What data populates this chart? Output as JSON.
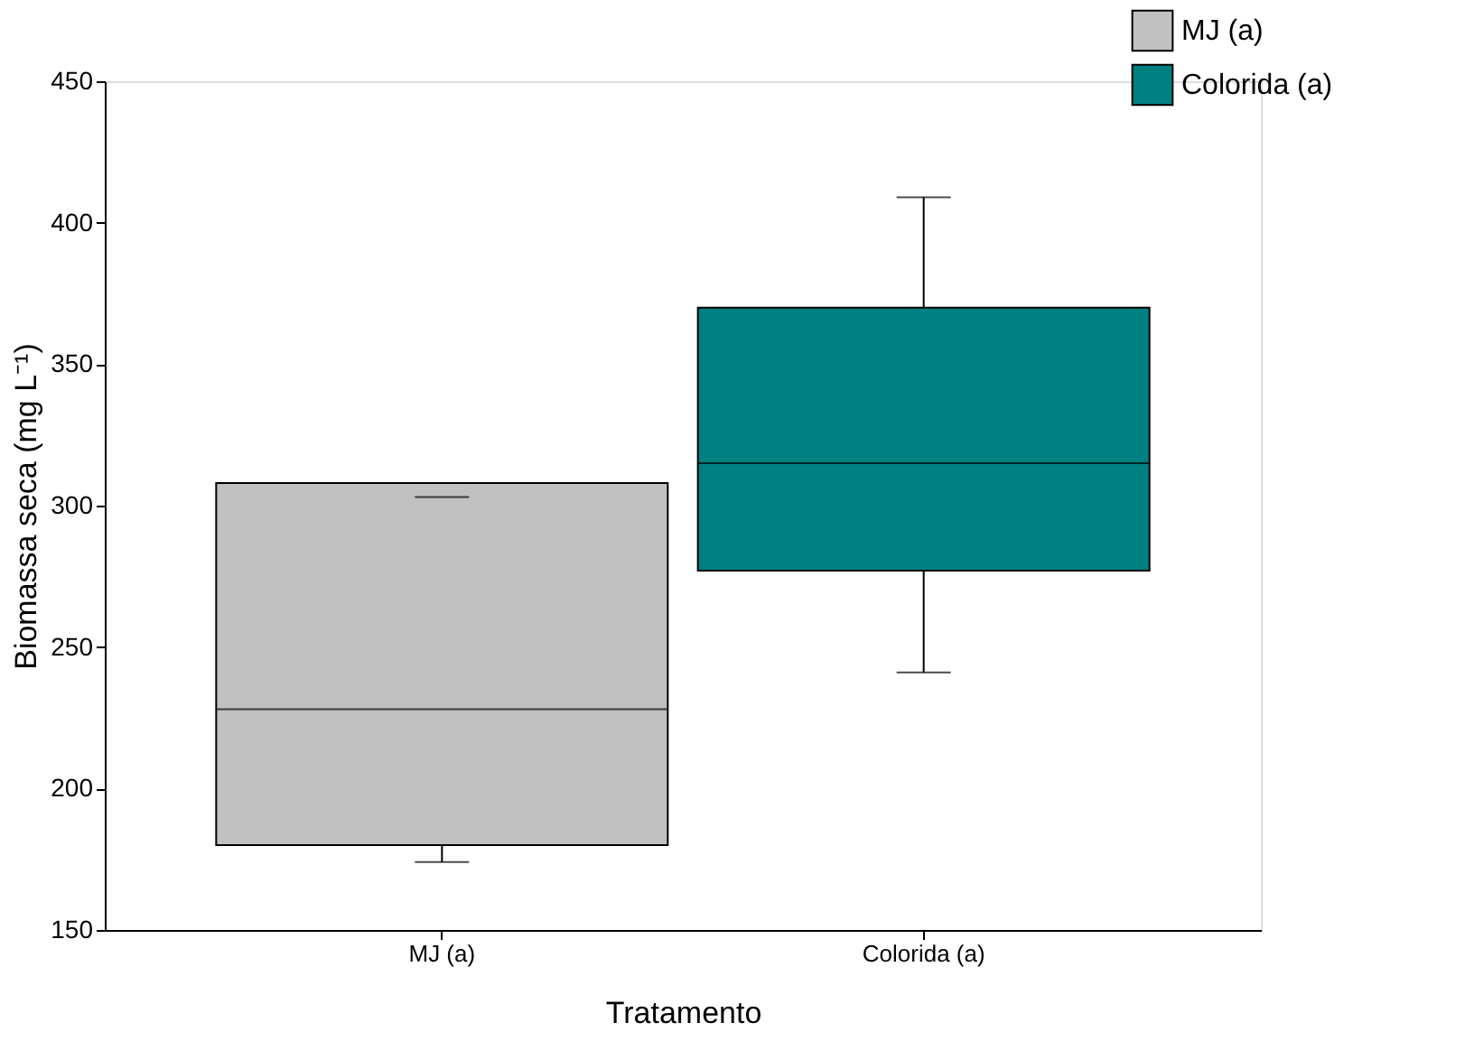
{
  "chart_data": {
    "type": "box",
    "xlabel": "Tratamento",
    "ylabel": "Biomassa seca (mg L⁻¹)",
    "categories": [
      "MJ (a)",
      "Colorida (a)"
    ],
    "series": [
      {
        "name": "MJ (a)",
        "color": "#c0c0c0",
        "boxes": [
          {
            "low": 174,
            "q1": 180,
            "median": 228,
            "q3": 308,
            "high": 303
          },
          null
        ]
      },
      {
        "name": "Colorida (a)",
        "color": "#008080",
        "boxes": [
          null,
          {
            "low": 241,
            "q1": 277,
            "median": 315,
            "q3": 370,
            "high": 409
          }
        ]
      }
    ],
    "ylim": [
      150,
      450
    ],
    "yticks": [
      150,
      200,
      250,
      300,
      350,
      400,
      450
    ],
    "grid": false,
    "legend": "top right"
  }
}
